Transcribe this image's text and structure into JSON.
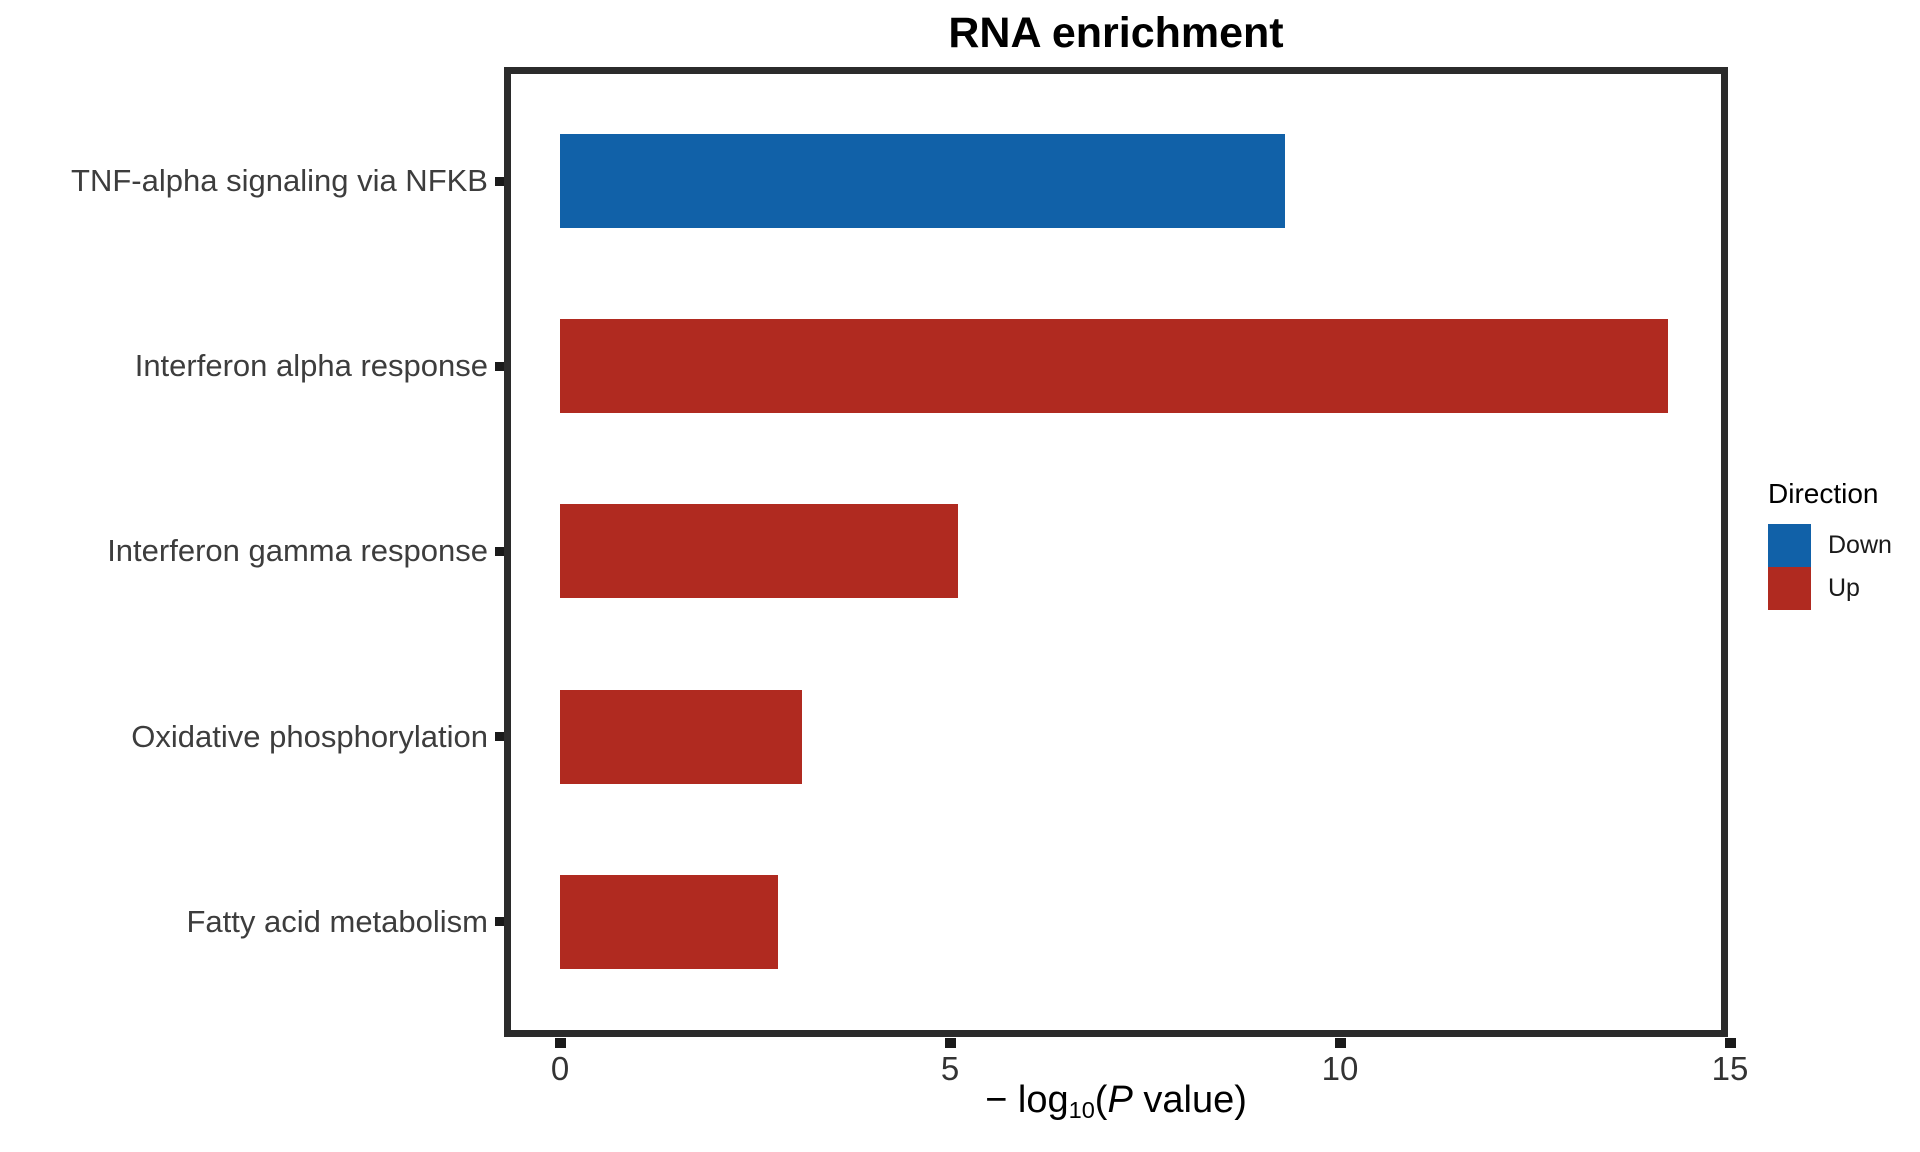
{
  "chart_data": {
    "type": "bar",
    "orientation": "horizontal",
    "title": "RNA enrichment",
    "xlabel": "-log10(P value)",
    "xlabel_rich": {
      "prefix": "− log",
      "subscript": "10",
      "open_paren": "(",
      "p_italic": "P",
      "suffix": " value)"
    },
    "ylabel": "",
    "xlim": [
      0,
      15
    ],
    "xticks": [
      {
        "value": 0,
        "label": "0"
      },
      {
        "value": 5,
        "label": "5"
      },
      {
        "value": 10,
        "label": "10"
      },
      {
        "value": 15,
        "label": "15"
      }
    ],
    "grid": false,
    "categories": [
      "TNF-alpha signaling via NFKB",
      "Interferon alpha response",
      "Interferon gamma response",
      "Oxidative phosphorylation",
      "Fatty acid metabolism"
    ],
    "values": [
      9.3,
      14.2,
      5.1,
      3.1,
      2.8
    ],
    "directions": [
      "Down",
      "Up",
      "Up",
      "Up",
      "Up"
    ],
    "legend": {
      "title": "Direction",
      "position": "right",
      "entries": [
        {
          "label": "Down",
          "color": "#1161a8"
        },
        {
          "label": "Up",
          "color": "#b02a20"
        }
      ]
    }
  },
  "colors": {
    "down_blue": "#1161a8",
    "up_red": "#b02a20",
    "panel_border": "#2b2b2b",
    "tick_mark": "#1a1a1a",
    "category_text": "#3d3d3d",
    "tick_text": "#333333",
    "title_text": "#000000"
  }
}
